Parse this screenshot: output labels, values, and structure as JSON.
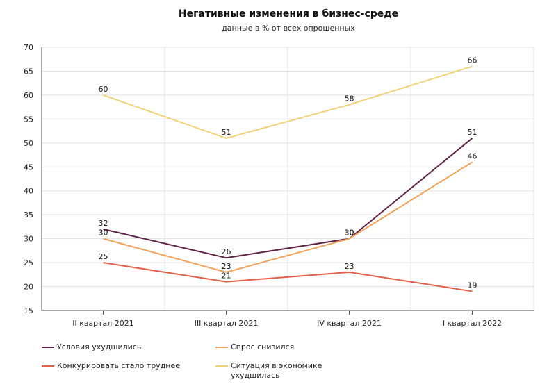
{
  "chart_data": {
    "type": "line",
    "title": "Негативные изменения в бизнес-среде",
    "subtitle": "данные в % от всех опрошенных",
    "categories": [
      "II квартал 2021",
      "III квартал 2021",
      "IV квартал 2021",
      "I квартал 2022"
    ],
    "ylim": [
      15,
      70
    ],
    "yticks": [
      15,
      20,
      25,
      30,
      35,
      40,
      45,
      50,
      55,
      60,
      65,
      70
    ],
    "grid": true,
    "legend_position": "bottom",
    "series": [
      {
        "name": "Ситуация в экономике ухудшилась",
        "color": "#f0d27a",
        "values": [
          60,
          51,
          58,
          66
        ]
      },
      {
        "name": "Условия ухудшились",
        "color": "#5c2346",
        "values": [
          32,
          26,
          30,
          51
        ]
      },
      {
        "name": "Спрос снизился",
        "color": "#f0a35c",
        "values": [
          30,
          23,
          30,
          46
        ]
      },
      {
        "name": "Конкурировать стало труднее",
        "color": "#e0604a",
        "values": [
          25,
          21,
          23,
          19
        ]
      }
    ],
    "legend": [
      {
        "name": "Условия ухудшились",
        "color": "#5c2346"
      },
      {
        "name": "Спрос снизился",
        "color": "#f0a35c"
      },
      {
        "name": "Конкурировать стало труднее",
        "color": "#e0604a"
      },
      {
        "name": "Ситуация в экономике ухудшилась",
        "color": "#f0d27a"
      }
    ]
  }
}
